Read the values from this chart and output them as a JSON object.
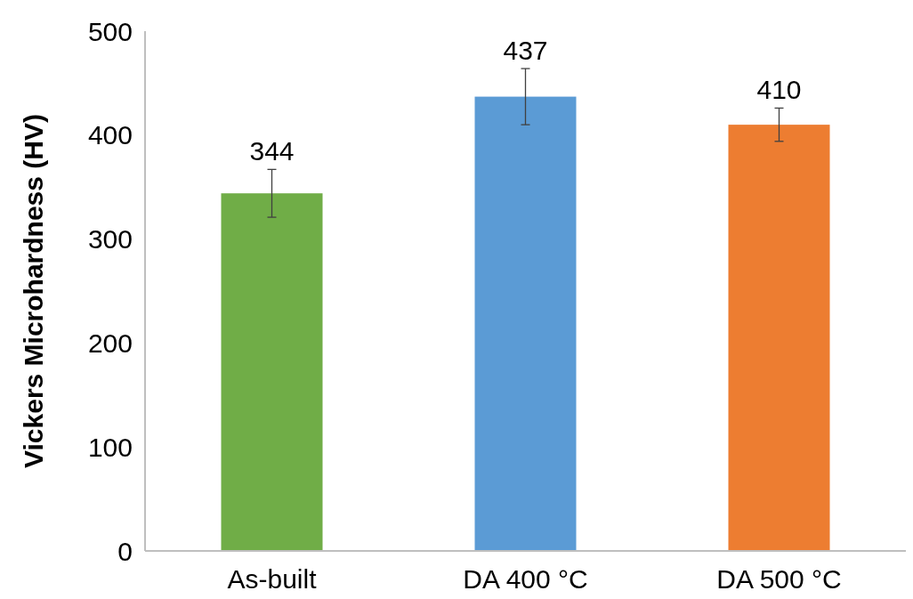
{
  "chart_data": {
    "type": "bar",
    "ylabel": "Vickers Microhardness (HV)",
    "categories": [
      "As-built",
      "DA 400 °C",
      "DA 500 °C"
    ],
    "values": [
      344,
      437,
      410
    ],
    "colors": [
      "#70ad47",
      "#5b9bd5",
      "#ed7d31"
    ],
    "errors": [
      23,
      27,
      16
    ],
    "ylim": [
      0,
      500
    ],
    "yticks": [
      0,
      100,
      200,
      300,
      400,
      500
    ],
    "grid": false,
    "data_labels": true
  }
}
